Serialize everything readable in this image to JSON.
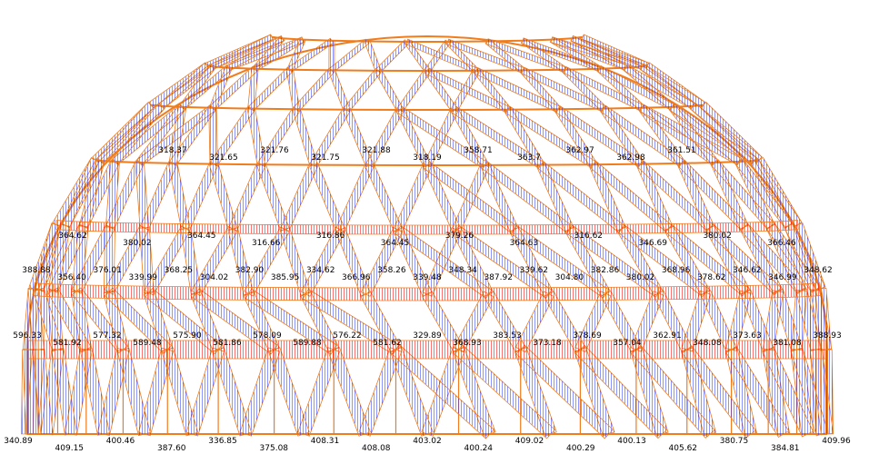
{
  "colors": {
    "frame": "#f07c1c",
    "tension_hatch": "#ff0000",
    "compression_hatch": "#1a2cff",
    "label": "#000000",
    "background": "#ffffff"
  },
  "labels": {
    "upper_ring": [
      "318.37",
      "321.65",
      "321.76",
      "321.75",
      "321.88",
      "318.19",
      "358.71",
      "363.7",
      "362.97",
      "362.98",
      "361.51"
    ],
    "middle_ring": [
      "364.62",
      "380.02",
      "364.45",
      "316.66",
      "316.86",
      "364.45",
      "379.26",
      "364.63",
      "316.62",
      "346.69",
      "380.02",
      "366.46"
    ],
    "lower_ring": [
      "388.88",
      "356.40",
      "376.01",
      "339.99",
      "368.25",
      "304.02",
      "382.90",
      "385.95",
      "334.62",
      "366.96",
      "358.26",
      "339.48",
      "348.34",
      "387.92",
      "339.62",
      "304.80",
      "382.86",
      "380.02",
      "368.96",
      "378.62",
      "346.62",
      "346.99",
      "348.62"
    ],
    "base_ring": [
      "596.33",
      "581.92",
      "577.32",
      "589.48",
      "575.90",
      "581.86",
      "578.09",
      "589.88",
      "576.22",
      "581.62",
      "329.89",
      "368.93",
      "383.53",
      "373.18",
      "378.69",
      "357.04",
      "362.91",
      "348.08",
      "373.63",
      "381.08",
      "388.93"
    ],
    "footing": [
      "340.89",
      "409.15",
      "400.46",
      "387.60",
      "336.85",
      "375.08",
      "408.31",
      "408.08",
      "403.02",
      "400.24",
      "409.02",
      "400.29",
      "400.13",
      "405.62",
      "380.75",
      "384.81",
      "409.96"
    ]
  }
}
